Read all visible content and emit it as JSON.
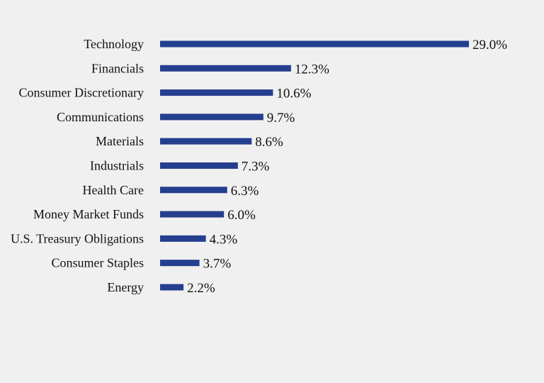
{
  "colors": {
    "background": "#f0f0f0",
    "bar": "#253f8f",
    "text": "#111111"
  },
  "chart_data": {
    "type": "bar",
    "orientation": "horizontal",
    "title": "",
    "xlabel": "",
    "ylabel": "",
    "xlim": [
      0,
      29.0
    ],
    "grid": false,
    "legend": "none",
    "categories": [
      "Technology",
      "Financials",
      "Consumer Discretionary",
      "Communications",
      "Materials",
      "Industrials",
      "Health Care",
      "Money Market Funds",
      "U.S. Treasury Obligations",
      "Consumer Staples",
      "Energy"
    ],
    "values": [
      29.0,
      12.3,
      10.6,
      9.7,
      8.6,
      7.3,
      6.3,
      6.0,
      4.3,
      3.7,
      2.2
    ],
    "value_labels": [
      "29.0%",
      "12.3%",
      "10.6%",
      "9.7%",
      "8.6%",
      "7.3%",
      "6.3%",
      "6.0%",
      "4.3%",
      "3.7%",
      "2.2%"
    ]
  }
}
